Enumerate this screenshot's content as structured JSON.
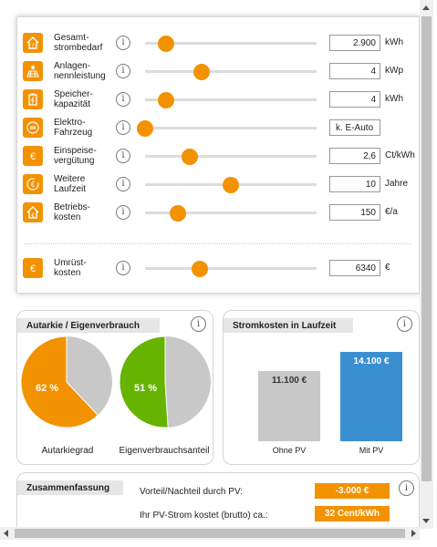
{
  "colors": {
    "accent": "#f39200",
    "green": "#66b300",
    "gray": "#c8c8c8",
    "blue": "#3a8fd0"
  },
  "settings": [
    {
      "icon": "house-question-icon",
      "label": "Gesamt-\nstrombedarf",
      "value": "2.900",
      "unit": "kWh",
      "slider_fraction": 0.12
    },
    {
      "icon": "solar-panel-icon",
      "label": "Anlagen-\nnennleistung",
      "value": "4",
      "unit": "kWp",
      "slider_fraction": 0.33
    },
    {
      "icon": "battery-icon",
      "label": "Speicher-\nkapazität",
      "value": "4",
      "unit": "kWh",
      "slider_fraction": 0.12
    },
    {
      "icon": "car-plug-icon",
      "label": "Elektro-\nFahrzeug",
      "value": "k. E-Auto",
      "unit": "",
      "slider_fraction": 0.0
    },
    {
      "icon": "euro-icon",
      "label": "Einspeise-\nvergütung",
      "value": "2,6",
      "unit": "Ct/kWh",
      "slider_fraction": 0.26
    },
    {
      "icon": "euro-clock-icon",
      "label": "Weitere\nLaufzeit",
      "value": "10",
      "unit": "Jahre",
      "slider_fraction": 0.5
    },
    {
      "icon": "house-euro-icon",
      "label": "Betriebs-\nkosten",
      "value": "150",
      "unit": "€/a",
      "slider_fraction": 0.19
    }
  ],
  "retrofit": {
    "icon": "euro-icon",
    "label": "Umrüst-\nkosten",
    "value": "6340",
    "unit": "€",
    "slider_fraction": 0.32
  },
  "info_glyph": "i",
  "autarkie": {
    "title": "Autarkie / Eigenverbrauch",
    "pies": [
      {
        "label": "Autarkiegrad",
        "percent": 62,
        "text": "62 %",
        "color": "#f39200"
      },
      {
        "label": "Eigenverbrauchsanteil",
        "percent": 51,
        "text": "51 %",
        "color": "#66b300"
      }
    ]
  },
  "chart_data": {
    "type": "bar",
    "title": "Stromkosten in Laufzeit",
    "categories": [
      "Ohne PV",
      "Mit PV"
    ],
    "values": [
      11100,
      14100
    ],
    "value_labels": [
      "11.100 €",
      "14.100 €"
    ],
    "colors": [
      "#c8c8c8",
      "#3a8fd0"
    ],
    "ylim": [
      0,
      15000
    ]
  },
  "summary": {
    "title": "Zusammenfassung",
    "rows": [
      {
        "label": "Vorteil/Nachteil durch PV:",
        "value": "-3.000 €"
      },
      {
        "label": "Ihr PV-Strom kostet (brutto) ca.:",
        "value": "32 Cent/kWh"
      }
    ]
  }
}
